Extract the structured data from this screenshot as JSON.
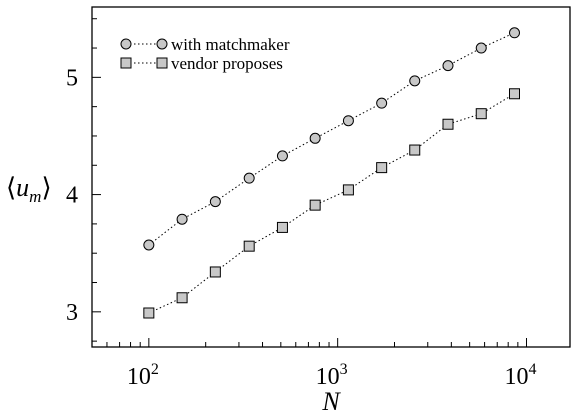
{
  "chart_data": {
    "type": "line",
    "xscale": "log",
    "xlim": [
      50,
      17000
    ],
    "ylim": [
      2.7,
      5.6
    ],
    "x_ticks": [
      {
        "value": 100,
        "base": "10",
        "exp": "2"
      },
      {
        "value": 1000,
        "base": "10",
        "exp": "3"
      },
      {
        "value": 10000,
        "base": "10",
        "exp": "4"
      }
    ],
    "y_ticks": [
      {
        "value": 3,
        "label": "3"
      },
      {
        "value": 4,
        "label": "4"
      },
      {
        "value": 5,
        "label": "5"
      }
    ],
    "xlabel": "N",
    "ylabel": {
      "open": "⟨",
      "var": "u",
      "sub": "m",
      "close": "⟩"
    },
    "grid": false,
    "legend_position": "top-left",
    "x": [
      100,
      150,
      225,
      340,
      510,
      760,
      1140,
      1710,
      2560,
      3840,
      5760,
      8640
    ],
    "series": [
      {
        "name": "with matchmaker",
        "marker": "circle",
        "color": "#c8c8c8",
        "values": [
          3.57,
          3.79,
          3.94,
          4.14,
          4.33,
          4.48,
          4.63,
          4.78,
          4.97,
          5.1,
          5.25,
          5.38
        ]
      },
      {
        "name": "vendor proposes",
        "marker": "square",
        "color": "#c8c8c8",
        "values": [
          2.99,
          3.12,
          3.34,
          3.56,
          3.72,
          3.91,
          4.04,
          4.23,
          4.38,
          4.6,
          4.69,
          4.86
        ]
      }
    ]
  }
}
